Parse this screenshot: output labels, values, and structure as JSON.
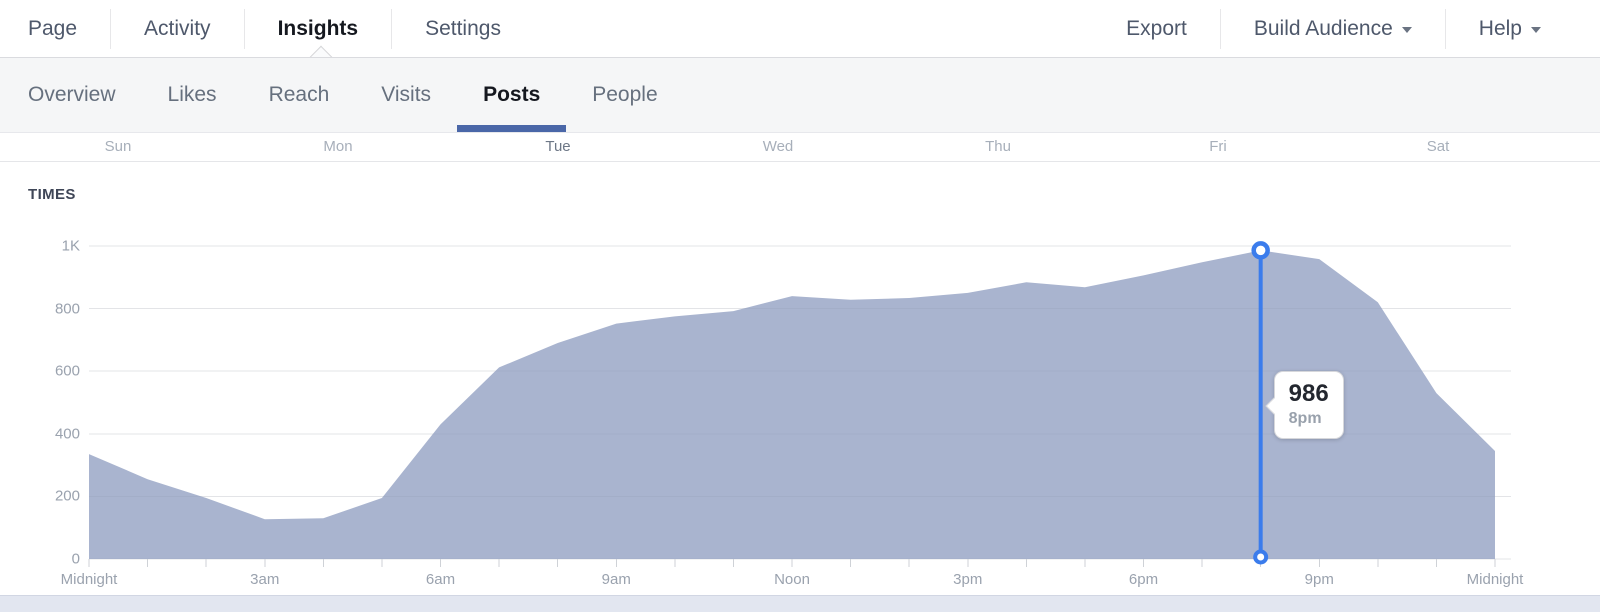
{
  "nav": {
    "left": [
      {
        "label": "Page",
        "active": false
      },
      {
        "label": "Activity",
        "active": false
      },
      {
        "label": "Insights",
        "active": true
      },
      {
        "label": "Settings",
        "active": false
      }
    ],
    "right": [
      {
        "label": "Export",
        "caret": false
      },
      {
        "label": "Build Audience",
        "caret": true
      },
      {
        "label": "Help",
        "caret": true
      }
    ]
  },
  "tabs": [
    {
      "label": "Overview",
      "active": false
    },
    {
      "label": "Likes",
      "active": false
    },
    {
      "label": "Reach",
      "active": false
    },
    {
      "label": "Visits",
      "active": false
    },
    {
      "label": "Posts",
      "active": true
    },
    {
      "label": "People",
      "active": false
    }
  ],
  "days": [
    {
      "label": "Sun",
      "selected": false
    },
    {
      "label": "Mon",
      "selected": false
    },
    {
      "label": "Tue",
      "selected": true
    },
    {
      "label": "Wed",
      "selected": false
    },
    {
      "label": "Thu",
      "selected": false
    },
    {
      "label": "Fri",
      "selected": false
    },
    {
      "label": "Sat",
      "selected": false
    }
  ],
  "section_label": "TIMES",
  "accent": {
    "tab_underline": "#4a67a8",
    "marker_blue": "#3b7cec",
    "area_fill": "#a9b4cf"
  },
  "chart_data": {
    "type": "area",
    "title": "TIMES",
    "x_start_hour": 0,
    "x_step_hours": 1,
    "values": [
      335,
      255,
      195,
      127,
      130,
      195,
      430,
      612,
      690,
      752,
      775,
      792,
      840,
      828,
      834,
      850,
      884,
      868,
      906,
      948,
      986,
      958,
      820,
      530,
      345
    ],
    "x_tick_labels": [
      {
        "hour": 0,
        "label": "Midnight"
      },
      {
        "hour": 3,
        "label": "3am"
      },
      {
        "hour": 6,
        "label": "6am"
      },
      {
        "hour": 9,
        "label": "9am"
      },
      {
        "hour": 12,
        "label": "Noon"
      },
      {
        "hour": 15,
        "label": "3pm"
      },
      {
        "hour": 18,
        "label": "6pm"
      },
      {
        "hour": 21,
        "label": "9pm"
      },
      {
        "hour": 24,
        "label": "Midnight"
      }
    ],
    "y_ticks": [
      {
        "value": 0,
        "label": "0"
      },
      {
        "value": 200,
        "label": "200"
      },
      {
        "value": 400,
        "label": "400"
      },
      {
        "value": 600,
        "label": "600"
      },
      {
        "value": 800,
        "label": "800"
      },
      {
        "value": 1000,
        "label": "1K"
      }
    ],
    "ylim": [
      0,
      1000
    ],
    "grid": true,
    "legend": "none",
    "highlight": {
      "hour": 20,
      "value": 986,
      "value_label": "986",
      "time_label": "8pm"
    }
  }
}
